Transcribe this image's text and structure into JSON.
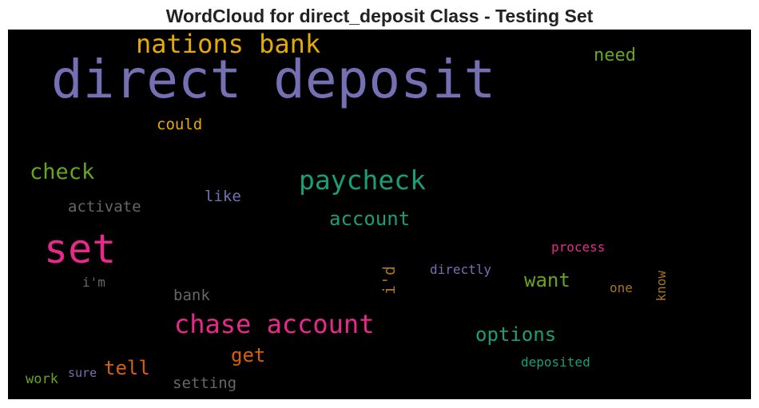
{
  "chart_data": {
    "type": "wordcloud",
    "title": "WordCloud for direct_deposit Class - Testing Set",
    "background": "#000000",
    "words": [
      {
        "text": "direct deposit",
        "color": "#7570b3"
      },
      {
        "text": "nations bank",
        "color": "#e6ab02"
      },
      {
        "text": "need",
        "color": "#66a61e"
      },
      {
        "text": "could",
        "color": "#e6ab02"
      },
      {
        "text": "check",
        "color": "#66a61e"
      },
      {
        "text": "paycheck",
        "color": "#1b9e77"
      },
      {
        "text": "like",
        "color": "#7570b3"
      },
      {
        "text": "activate",
        "color": "#666666"
      },
      {
        "text": "account",
        "color": "#1b9e77"
      },
      {
        "text": "set",
        "color": "#e7298a"
      },
      {
        "text": "process",
        "color": "#e7298a"
      },
      {
        "text": "directly",
        "color": "#7570b3"
      },
      {
        "text": "i'd",
        "color": "#a6761d"
      },
      {
        "text": "i'm",
        "color": "#666666"
      },
      {
        "text": "want",
        "color": "#66a61e"
      },
      {
        "text": "one",
        "color": "#a6761d"
      },
      {
        "text": "know",
        "color": "#a6761d"
      },
      {
        "text": "bank",
        "color": "#666666"
      },
      {
        "text": "chase account",
        "color": "#e7298a"
      },
      {
        "text": "options",
        "color": "#1b9e77"
      },
      {
        "text": "get",
        "color": "#d95f02"
      },
      {
        "text": "tell",
        "color": "#d95f02"
      },
      {
        "text": "deposited",
        "color": "#1b9e77"
      },
      {
        "text": "work",
        "color": "#66a61e"
      },
      {
        "text": "sure",
        "color": "#7570b3"
      },
      {
        "text": "setting",
        "color": "#666666"
      }
    ]
  }
}
